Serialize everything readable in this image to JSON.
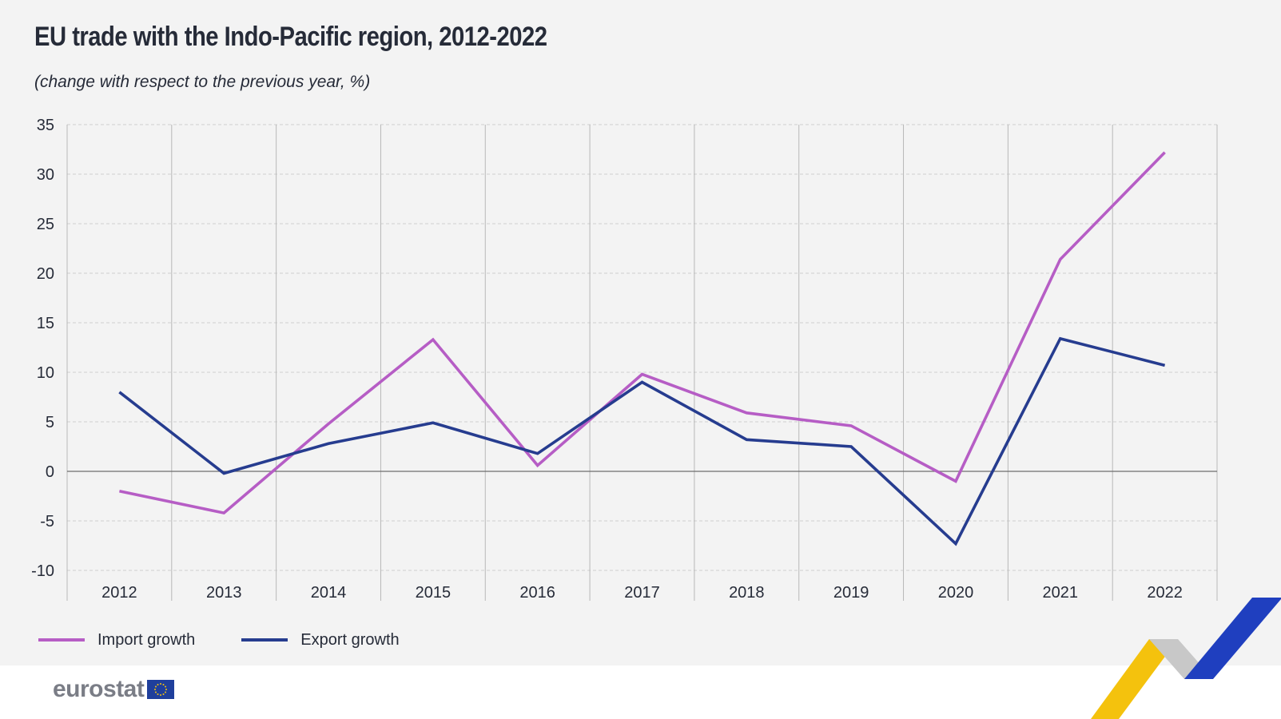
{
  "header": {
    "title": "EU trade with the Indo-Pacific region, 2012-2022",
    "subtitle": "(change with respect to the previous year, %)"
  },
  "legend": {
    "items": [
      {
        "label": "Import growth",
        "color": "#b65dc5"
      },
      {
        "label": "Export growth",
        "color": "#263c8f"
      }
    ]
  },
  "branding": {
    "logo_text": "eurostat",
    "flag_icon": "eu-flag-icon",
    "flag_color": "#1f3f9c",
    "decoration_colors": [
      "#f4c20d",
      "#c8c8c8",
      "#1f3fbf"
    ]
  },
  "chart_data": {
    "type": "line",
    "title": "EU trade with the Indo-Pacific region, 2012-2022",
    "subtitle": "(change with respect to the previous year, %)",
    "xlabel": "",
    "ylabel": "",
    "categories": [
      "2012",
      "2013",
      "2014",
      "2015",
      "2016",
      "2017",
      "2018",
      "2019",
      "2020",
      "2021",
      "2022"
    ],
    "ylim": [
      -10,
      35
    ],
    "yticks": [
      -10,
      -5,
      0,
      5,
      10,
      15,
      20,
      25,
      30,
      35
    ],
    "ytick_labels": [
      "-10",
      "-5",
      "0",
      "5",
      "10",
      "15",
      "20",
      "25",
      "30",
      "35"
    ],
    "grid": true,
    "legend_position": "bottom-left",
    "series": [
      {
        "name": "Import growth",
        "color": "#b65dc5",
        "values": [
          -2.0,
          -4.2,
          4.8,
          13.3,
          0.6,
          9.8,
          5.9,
          4.6,
          -1.0,
          21.4,
          32.2
        ]
      },
      {
        "name": "Export growth",
        "color": "#263c8f",
        "values": [
          8.0,
          -0.2,
          2.8,
          4.9,
          1.8,
          9.0,
          3.2,
          2.5,
          -7.3,
          13.4,
          10.7
        ]
      }
    ]
  }
}
